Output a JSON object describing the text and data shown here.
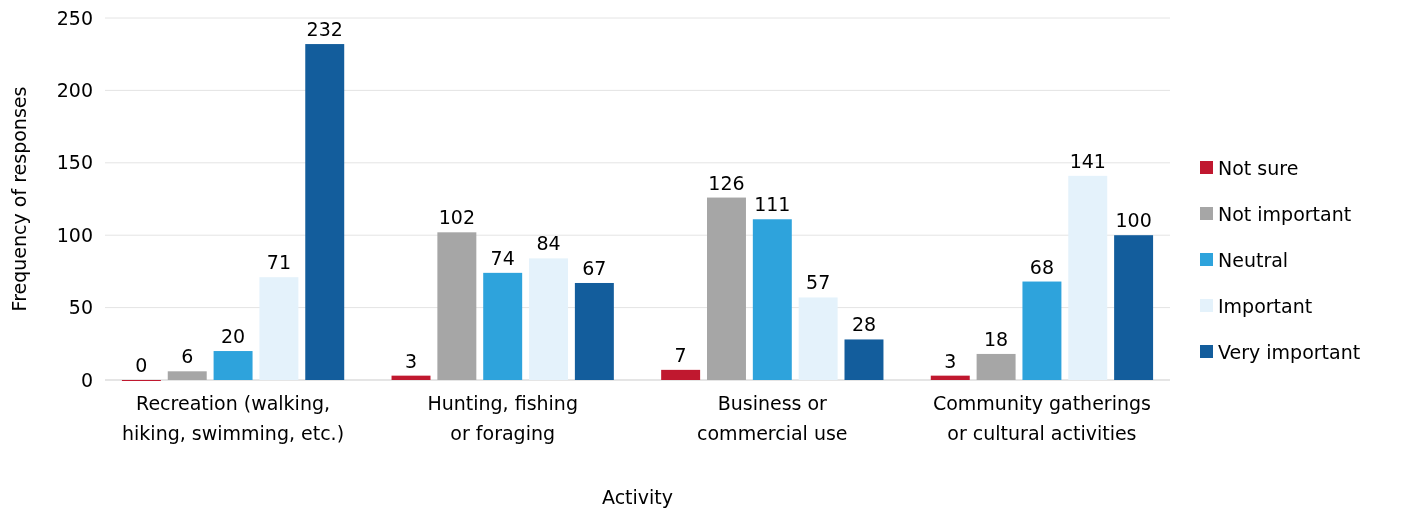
{
  "chart_data": {
    "type": "bar",
    "xlabel": "Activity",
    "ylabel": "Frequency of responses",
    "categories": [
      "Recreation (walking, hiking, swimming, etc.)",
      "Hunting, fishing or foraging",
      "Business or commercial use",
      "Community gatherings or cultural activities"
    ],
    "series": [
      {
        "name": "Not sure",
        "color": "#c0182f",
        "values": [
          0,
          3,
          7,
          3
        ]
      },
      {
        "name": "Not important",
        "color": "#a6a6a6",
        "values": [
          6,
          102,
          126,
          18
        ]
      },
      {
        "name": "Neutral",
        "color": "#2ea3dc",
        "values": [
          20,
          74,
          111,
          68
        ]
      },
      {
        "name": "Important",
        "color": "#e4f2fb",
        "values": [
          71,
          84,
          57,
          141
        ]
      },
      {
        "name": "Very important",
        "color": "#135d9c",
        "values": [
          232,
          67,
          28,
          100
        ]
      }
    ],
    "ylim": [
      0,
      250
    ],
    "yticks": [
      0,
      50,
      100,
      150,
      200,
      250
    ],
    "grid": "y",
    "legend": "right",
    "data_labels": true
  }
}
